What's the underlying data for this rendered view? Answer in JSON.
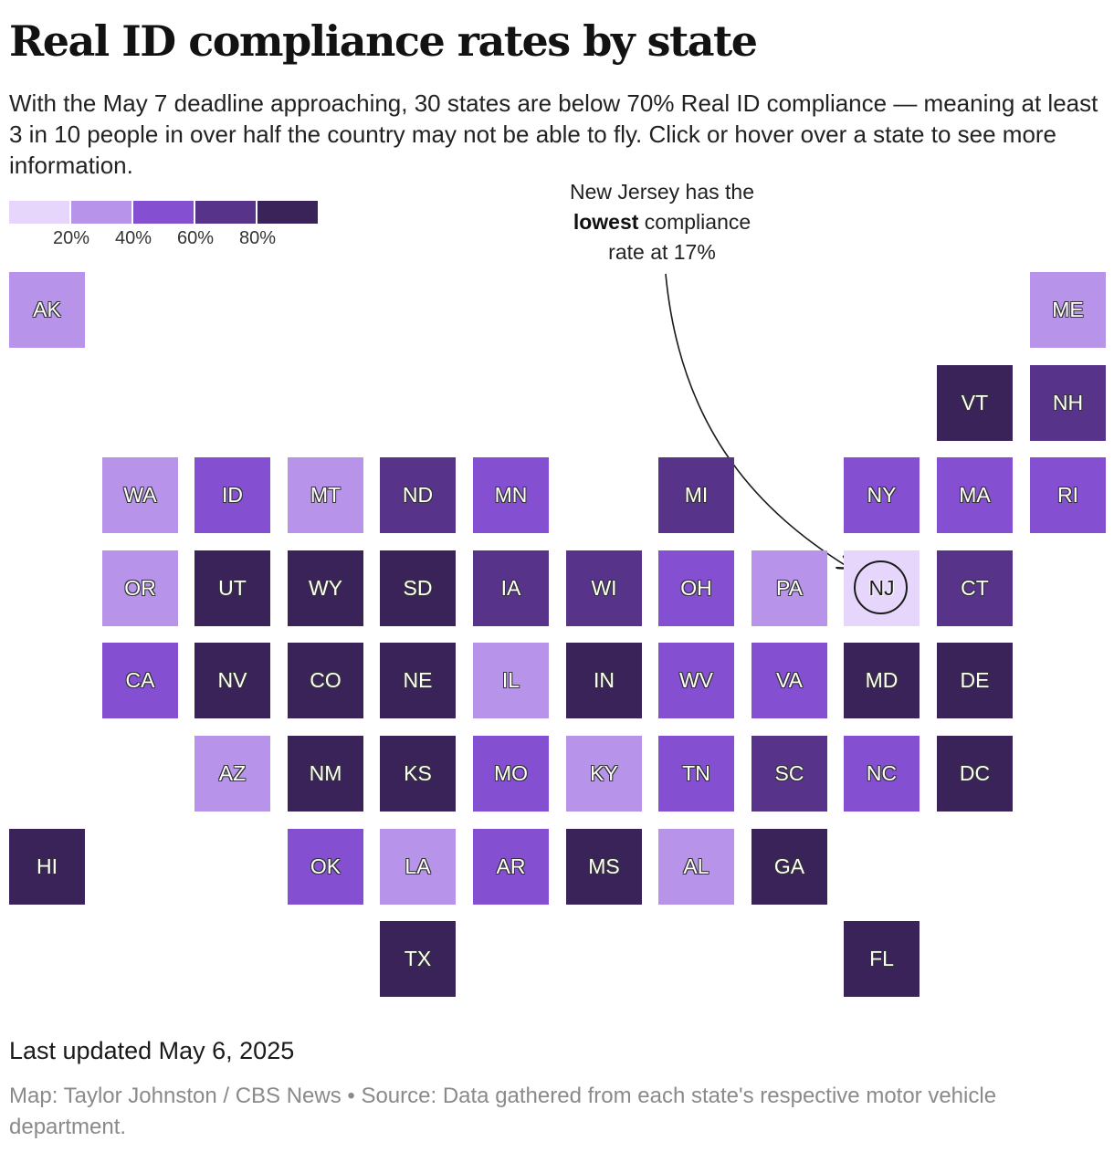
{
  "title": "Real ID compliance rates by state",
  "subtitle": "With the May 7 deadline approaching, 30 states are below 70% Real ID compliance — meaning at least 3 in 10 people in over half the country may not be able to fly. Click or hover over a state to see more information.",
  "legend": {
    "colors": [
      "#e6d6fb",
      "#b893ea",
      "#8450d1",
      "#573489",
      "#3a2358"
    ],
    "labels": [
      "20%",
      "40%",
      "60%",
      "80%"
    ]
  },
  "annotation": {
    "line1": "New Jersey has the",
    "bold": "lowest",
    "line2_rest": " compliance",
    "line3": "rate at 17%"
  },
  "states": [
    {
      "abbr": "AK",
      "bin": 1
    },
    {
      "abbr": "ME",
      "bin": 1
    },
    {
      "abbr": "VT",
      "bin": 4
    },
    {
      "abbr": "NH",
      "bin": 3
    },
    {
      "abbr": "WA",
      "bin": 1
    },
    {
      "abbr": "ID",
      "bin": 2
    },
    {
      "abbr": "MT",
      "bin": 1
    },
    {
      "abbr": "ND",
      "bin": 3
    },
    {
      "abbr": "MN",
      "bin": 2
    },
    {
      "abbr": "MI",
      "bin": 3
    },
    {
      "abbr": "NY",
      "bin": 2
    },
    {
      "abbr": "MA",
      "bin": 2
    },
    {
      "abbr": "RI",
      "bin": 2
    },
    {
      "abbr": "OR",
      "bin": 1
    },
    {
      "abbr": "UT",
      "bin": 4
    },
    {
      "abbr": "WY",
      "bin": 4
    },
    {
      "abbr": "SD",
      "bin": 4
    },
    {
      "abbr": "IA",
      "bin": 3
    },
    {
      "abbr": "WI",
      "bin": 3
    },
    {
      "abbr": "OH",
      "bin": 2
    },
    {
      "abbr": "PA",
      "bin": 1
    },
    {
      "abbr": "NJ",
      "bin": 0
    },
    {
      "abbr": "CT",
      "bin": 3
    },
    {
      "abbr": "CA",
      "bin": 2
    },
    {
      "abbr": "NV",
      "bin": 4
    },
    {
      "abbr": "CO",
      "bin": 4
    },
    {
      "abbr": "NE",
      "bin": 4
    },
    {
      "abbr": "IL",
      "bin": 1
    },
    {
      "abbr": "IN",
      "bin": 4
    },
    {
      "abbr": "WV",
      "bin": 2
    },
    {
      "abbr": "VA",
      "bin": 2
    },
    {
      "abbr": "MD",
      "bin": 4
    },
    {
      "abbr": "DE",
      "bin": 4
    },
    {
      "abbr": "AZ",
      "bin": 1
    },
    {
      "abbr": "NM",
      "bin": 4
    },
    {
      "abbr": "KS",
      "bin": 4
    },
    {
      "abbr": "MO",
      "bin": 2
    },
    {
      "abbr": "KY",
      "bin": 1
    },
    {
      "abbr": "TN",
      "bin": 2
    },
    {
      "abbr": "SC",
      "bin": 3
    },
    {
      "abbr": "NC",
      "bin": 2
    },
    {
      "abbr": "DC",
      "bin": 4
    },
    {
      "abbr": "HI",
      "bin": 4
    },
    {
      "abbr": "OK",
      "bin": 2
    },
    {
      "abbr": "LA",
      "bin": 1
    },
    {
      "abbr": "AR",
      "bin": 2
    },
    {
      "abbr": "MS",
      "bin": 4
    },
    {
      "abbr": "AL",
      "bin": 1
    },
    {
      "abbr": "GA",
      "bin": 4
    },
    {
      "abbr": "TX",
      "bin": 4
    },
    {
      "abbr": "FL",
      "bin": 4
    }
  ],
  "footer": {
    "updated": "Last updated May 6, 2025",
    "credit": "Map: Taylor Johnston / CBS News • Source: Data gathered from each state's respective motor vehicle department."
  }
}
